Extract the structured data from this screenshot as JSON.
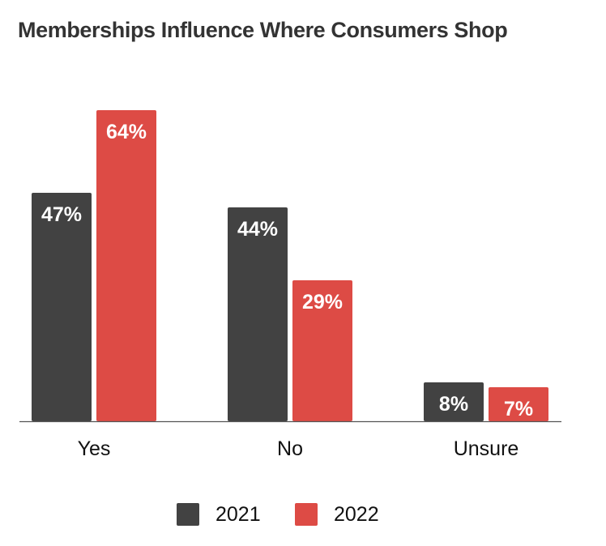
{
  "chart_data": {
    "type": "bar",
    "title": "Memberships Influence Where Consumers Shop",
    "categories": [
      "Yes",
      "No",
      "Unsure"
    ],
    "series": [
      {
        "name": "2021",
        "values": [
          47,
          44,
          8
        ],
        "labels": [
          "47%",
          "44%",
          "8%"
        ],
        "color": "#424242"
      },
      {
        "name": "2022",
        "values": [
          64,
          29,
          7
        ],
        "labels": [
          "64%",
          "29%",
          "7%"
        ],
        "color": "#dd4b45"
      }
    ],
    "xlabel": "",
    "ylabel": "",
    "ylim": [
      0,
      64
    ],
    "unit": "%",
    "grid": false,
    "legend_position": "bottom"
  }
}
